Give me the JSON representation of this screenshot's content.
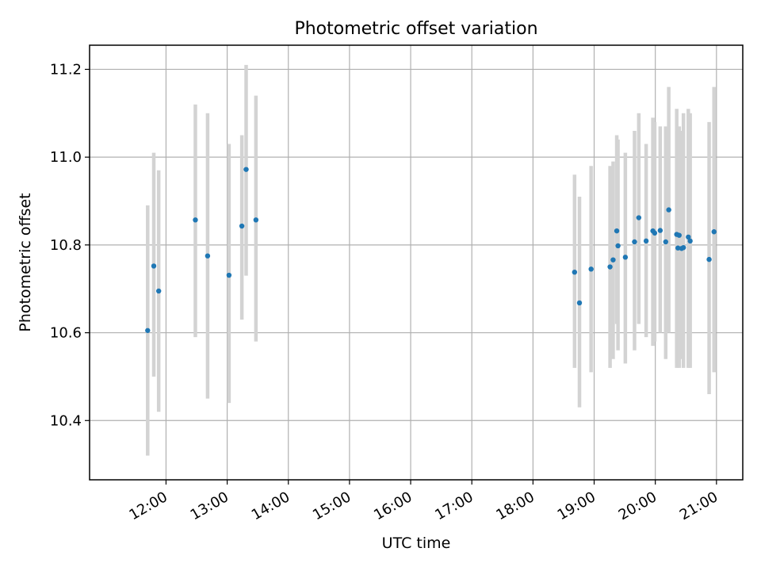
{
  "chart_data": {
    "type": "scatter",
    "title": "Photometric offset variation",
    "xlabel": "UTC time",
    "ylabel": "Photometric offset",
    "x_unit": "hours UTC",
    "xlim": [
      10.75,
      21.43
    ],
    "ylim": [
      10.265,
      11.255
    ],
    "x_ticks": [
      {
        "value": 12,
        "label": "12:00"
      },
      {
        "value": 13,
        "label": "13:00"
      },
      {
        "value": 14,
        "label": "14:00"
      },
      {
        "value": 15,
        "label": "15:00"
      },
      {
        "value": 16,
        "label": "16:00"
      },
      {
        "value": 17,
        "label": "17:00"
      },
      {
        "value": 18,
        "label": "18:00"
      },
      {
        "value": 19,
        "label": "19:00"
      },
      {
        "value": 20,
        "label": "20:00"
      },
      {
        "value": 21,
        "label": "21:00"
      }
    ],
    "y_ticks": [
      {
        "value": 10.4,
        "label": "10.4"
      },
      {
        "value": 10.6,
        "label": "10.6"
      },
      {
        "value": 10.8,
        "label": "10.8"
      },
      {
        "value": 11.0,
        "label": "11.0"
      },
      {
        "value": 11.2,
        "label": "11.2"
      }
    ],
    "grid": true,
    "point_color": "#1f77b4",
    "errorbar_color": "#d3d3d3",
    "series": [
      {
        "points": [
          {
            "x": 11.7,
            "y": 10.605,
            "lo": 10.32,
            "hi": 10.89
          },
          {
            "x": 11.8,
            "y": 10.752,
            "lo": 10.5,
            "hi": 11.01
          },
          {
            "x": 11.88,
            "y": 10.695,
            "lo": 10.42,
            "hi": 10.97
          },
          {
            "x": 12.48,
            "y": 10.857,
            "lo": 10.59,
            "hi": 11.12
          },
          {
            "x": 12.68,
            "y": 10.775,
            "lo": 10.45,
            "hi": 11.1
          },
          {
            "x": 13.03,
            "y": 10.731,
            "lo": 10.44,
            "hi": 11.03
          },
          {
            "x": 13.24,
            "y": 10.843,
            "lo": 10.63,
            "hi": 11.05
          },
          {
            "x": 13.31,
            "y": 10.972,
            "lo": 10.73,
            "hi": 11.21
          },
          {
            "x": 13.47,
            "y": 10.857,
            "lo": 10.58,
            "hi": 11.14
          },
          {
            "x": 18.68,
            "y": 10.738,
            "lo": 10.52,
            "hi": 10.96
          },
          {
            "x": 18.76,
            "y": 10.668,
            "lo": 10.43,
            "hi": 10.91
          },
          {
            "x": 18.95,
            "y": 10.745,
            "lo": 10.51,
            "hi": 10.98
          },
          {
            "x": 19.26,
            "y": 10.75,
            "lo": 10.52,
            "hi": 10.98
          },
          {
            "x": 19.31,
            "y": 10.766,
            "lo": 10.54,
            "hi": 10.99
          },
          {
            "x": 19.37,
            "y": 10.832,
            "lo": 10.62,
            "hi": 11.05
          },
          {
            "x": 19.39,
            "y": 10.798,
            "lo": 10.56,
            "hi": 11.04
          },
          {
            "x": 19.51,
            "y": 10.772,
            "lo": 10.53,
            "hi": 11.01
          },
          {
            "x": 19.66,
            "y": 10.807,
            "lo": 10.56,
            "hi": 11.06
          },
          {
            "x": 19.73,
            "y": 10.862,
            "lo": 10.62,
            "hi": 11.1
          },
          {
            "x": 19.85,
            "y": 10.809,
            "lo": 10.59,
            "hi": 11.03
          },
          {
            "x": 19.96,
            "y": 10.832,
            "lo": 10.57,
            "hi": 11.09
          },
          {
            "x": 19.99,
            "y": 10.827,
            "lo": 10.58,
            "hi": 11.08
          },
          {
            "x": 20.08,
            "y": 10.833,
            "lo": 10.6,
            "hi": 11.07
          },
          {
            "x": 20.17,
            "y": 10.807,
            "lo": 10.54,
            "hi": 11.07
          },
          {
            "x": 20.22,
            "y": 10.88,
            "lo": 10.6,
            "hi": 11.16
          },
          {
            "x": 20.35,
            "y": 10.824,
            "lo": 10.52,
            "hi": 11.11
          },
          {
            "x": 20.37,
            "y": 10.793,
            "lo": 10.53,
            "hi": 11.06
          },
          {
            "x": 20.39,
            "y": 10.822,
            "lo": 10.52,
            "hi": 11.07
          },
          {
            "x": 20.43,
            "y": 10.792,
            "lo": 10.54,
            "hi": 11.06
          },
          {
            "x": 20.46,
            "y": 10.794,
            "lo": 10.52,
            "hi": 11.1
          },
          {
            "x": 20.54,
            "y": 10.818,
            "lo": 10.52,
            "hi": 11.11
          },
          {
            "x": 20.57,
            "y": 10.809,
            "lo": 10.52,
            "hi": 11.1
          },
          {
            "x": 20.88,
            "y": 10.767,
            "lo": 10.46,
            "hi": 11.08
          },
          {
            "x": 20.96,
            "y": 10.83,
            "lo": 10.51,
            "hi": 11.16
          }
        ]
      }
    ]
  }
}
